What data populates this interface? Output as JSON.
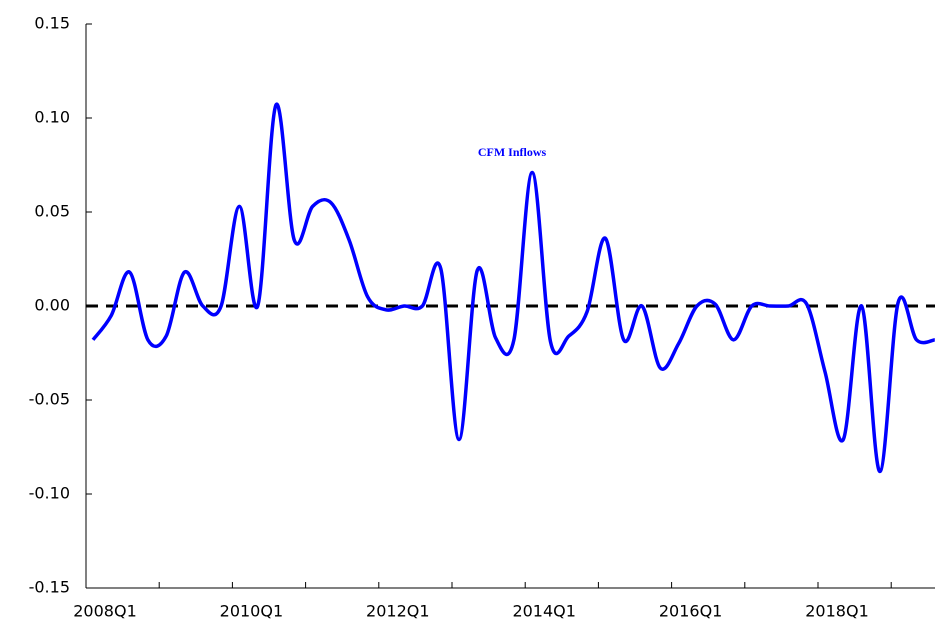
{
  "chart_data": {
    "type": "line",
    "annotation": "CFM Inflows",
    "categories": [
      "2008Q1",
      null,
      null,
      null,
      null,
      null,
      null,
      null,
      "2010Q1",
      null,
      null,
      null,
      null,
      null,
      null,
      null,
      "2012Q1",
      null,
      null,
      null,
      null,
      null,
      null,
      null,
      "2014Q1",
      null,
      null,
      null,
      null,
      null,
      null,
      null,
      "2016Q1",
      null,
      null,
      null,
      null,
      null,
      null,
      null,
      "2018Q1",
      null,
      null,
      null,
      null,
      null,
      null
    ],
    "series": [
      {
        "name": "CFM Inflows",
        "color": "#0000ff",
        "values": [
          -0.018,
          -0.005,
          0.018,
          -0.018,
          -0.016,
          0.018,
          0.0,
          0.0,
          0.053,
          0.0,
          0.107,
          0.035,
          0.053,
          0.055,
          0.035,
          0.005,
          -0.002,
          0.0,
          0.0,
          0.02,
          -0.071,
          0.019,
          -0.017,
          -0.018,
          0.071,
          -0.019,
          -0.016,
          -0.003,
          0.036,
          -0.018,
          0.0,
          -0.033,
          -0.02,
          0.0,
          0.001,
          -0.018,
          0.0,
          0.0,
          0.0,
          0.001,
          -0.035,
          -0.071,
          0.0,
          -0.088,
          0.002,
          -0.018,
          -0.018
        ]
      }
    ],
    "reference_line": {
      "value": 0,
      "color": "#000000",
      "style": "dashed"
    },
    "ylim": [
      -0.15,
      0.15
    ],
    "yticks": [
      {
        "value": -0.15,
        "label": "-0.15"
      },
      {
        "value": -0.1,
        "label": "-0.10"
      },
      {
        "value": -0.05,
        "label": "-0.05"
      },
      {
        "value": 0,
        "label": "0.00"
      },
      {
        "value": 0.05,
        "label": "0.05"
      },
      {
        "value": 0.1,
        "label": "0.10"
      },
      {
        "value": 0.15,
        "label": "0.15"
      }
    ],
    "grid": false
  }
}
